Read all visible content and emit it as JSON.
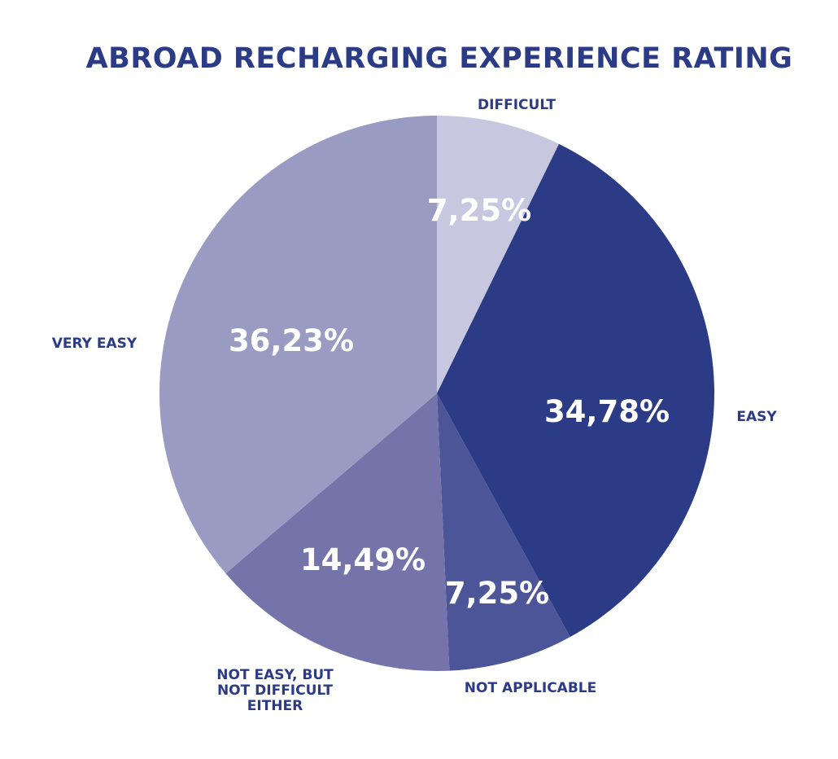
{
  "chart_data": {
    "type": "pie",
    "title": "ABROAD RECHARGING EXPERIENCE RATING",
    "slices": [
      {
        "label": "DIFFICULT",
        "label_lines": [
          "DIFFICULT"
        ],
        "value": 7.25,
        "value_label": "7,25%",
        "color": "#c7c8e0"
      },
      {
        "label": "EASY",
        "label_lines": [
          "EASY"
        ],
        "value": 34.78,
        "value_label": "34,78%",
        "color": "#2b3b86"
      },
      {
        "label": "NOT APPLICABLE",
        "label_lines": [
          "NOT APPLICABLE"
        ],
        "value": 7.25,
        "value_label": "7,25%",
        "color": "#4c5598"
      },
      {
        "label": "NOT EASY, BUT NOT DIFFICULT EITHER",
        "label_lines": [
          "NOT EASY, BUT",
          "NOT DIFFICULT",
          "EITHER"
        ],
        "value": 14.49,
        "value_label": "14,49%",
        "color": "#7574aa"
      },
      {
        "label": "VERY EASY",
        "label_lines": [
          "VERY EASY"
        ],
        "value": 36.23,
        "value_label": "36,23%",
        "color": "#9a9bc3"
      }
    ],
    "start_angle_deg": 0,
    "direction": "clockwise",
    "legend": "none"
  }
}
